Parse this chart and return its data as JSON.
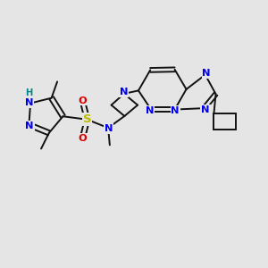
{
  "bg": "#e5e5e5",
  "bond_color": "#111111",
  "bw": 1.4,
  "atom_colors": {
    "N": "#0000ee",
    "S": "#bbbb00",
    "O": "#dd0000",
    "H": "#008888",
    "C": "#111111"
  },
  "xlim": [
    0,
    10
  ],
  "ylim": [
    0,
    10
  ],
  "figsize": [
    3.0,
    3.0
  ],
  "dpi": 100
}
